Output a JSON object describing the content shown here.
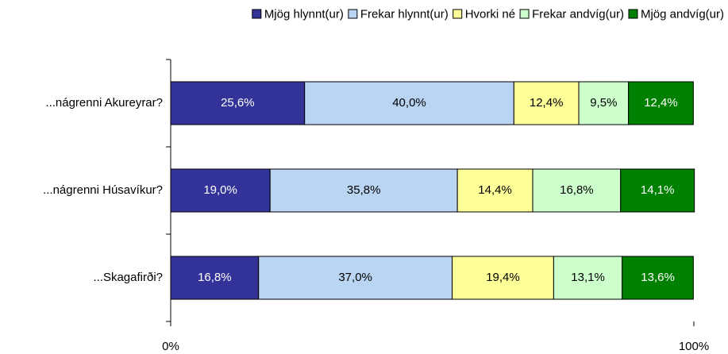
{
  "chart_data": {
    "type": "bar",
    "orientation": "horizontal",
    "stacked": true,
    "categories": [
      "...nágrenni Akureyrar?",
      "...nágrenni Húsavíkur?",
      "...Skagafirði?"
    ],
    "series": [
      {
        "name": "Mjög hlynnt(ur)",
        "color": "#333399",
        "values": [
          25.6,
          19.0,
          16.8
        ],
        "value_labels": [
          "25,6%",
          "19,0%",
          "16,8%"
        ]
      },
      {
        "name": "Frekar hlynnt(ur)",
        "color": "#b9d5f3",
        "values": [
          40.0,
          35.8,
          37.0
        ],
        "value_labels": [
          "40,0%",
          "35,8%",
          "37,0%"
        ]
      },
      {
        "name": "Hvorki né",
        "color": "#ffff99",
        "values": [
          12.4,
          14.4,
          19.4
        ],
        "value_labels": [
          "12,4%",
          "14,4%",
          "19,4%"
        ]
      },
      {
        "name": "Frekar andvíg(ur)",
        "color": "#ccffcc",
        "values": [
          9.5,
          16.8,
          13.1
        ],
        "value_labels": [
          "9,5%",
          "16,8%",
          "13,1%"
        ]
      },
      {
        "name": "Mjög andvíg(ur)",
        "color": "#008000",
        "values": [
          12.4,
          14.1,
          13.6
        ],
        "value_labels": [
          "12,4%",
          "14,1%",
          "13,6%"
        ]
      }
    ],
    "xlim": [
      0,
      100
    ],
    "xticks": [
      {
        "value": 0,
        "label": "0%"
      },
      {
        "value": 100,
        "label": "100%"
      }
    ],
    "legend": "top"
  }
}
